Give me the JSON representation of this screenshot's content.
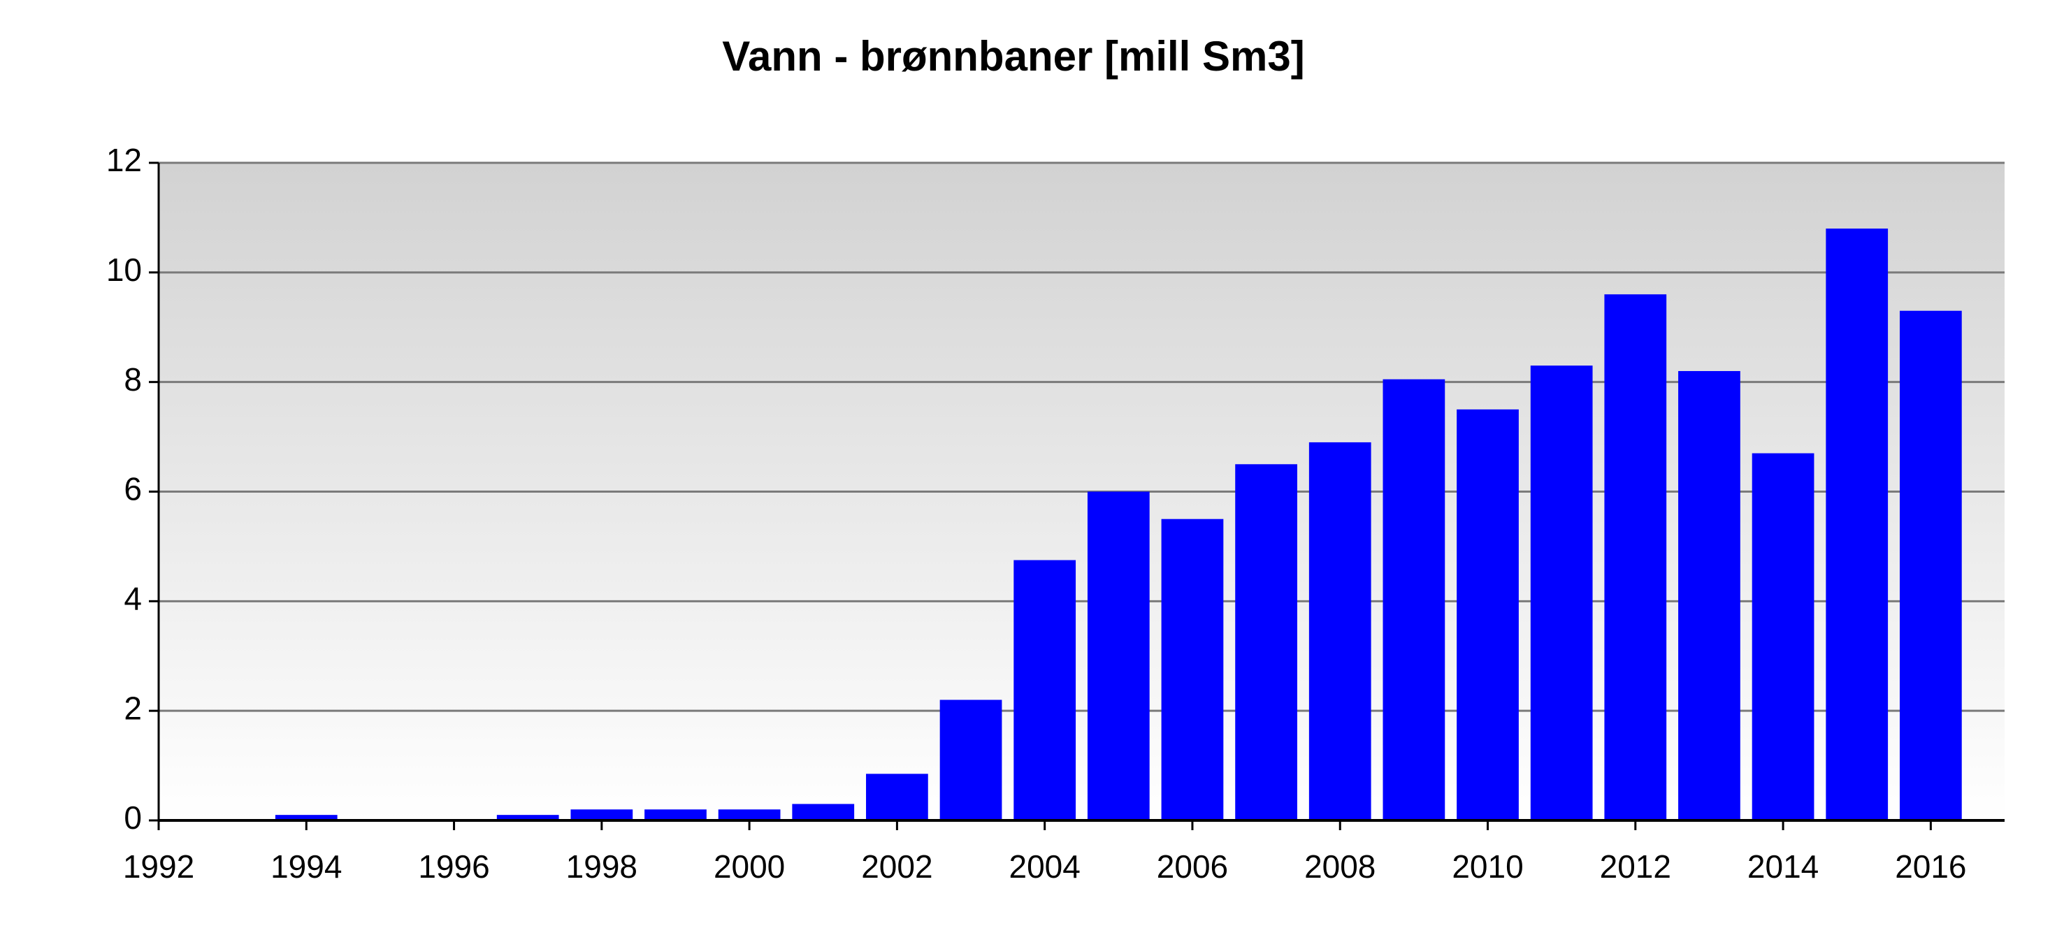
{
  "chart_data": {
    "type": "bar",
    "title": "Vann - brønnbaner [mill Sm3]",
    "x": [
      1994,
      1997,
      1998,
      1999,
      2000,
      2001,
      2002,
      2003,
      2004,
      2005,
      2006,
      2007,
      2008,
      2009,
      2010,
      2011,
      2012,
      2013,
      2014,
      2015,
      2016
    ],
    "values": [
      0.1,
      0.1,
      0.2,
      0.2,
      0.2,
      0.3,
      0.85,
      2.2,
      4.75,
      6.0,
      5.5,
      6.5,
      6.9,
      8.05,
      7.5,
      8.3,
      9.6,
      8.2,
      6.7,
      10.8,
      9.3
    ],
    "color": "#0000ff",
    "xlim": [
      1992,
      2017
    ],
    "xticks": [
      1992,
      1994,
      1996,
      1998,
      2000,
      2002,
      2004,
      2006,
      2008,
      2010,
      2012,
      2014,
      2016
    ],
    "ylim": [
      0,
      12
    ],
    "yticks": [
      0,
      2,
      4,
      6,
      8,
      10,
      12
    ],
    "grid": true
  }
}
